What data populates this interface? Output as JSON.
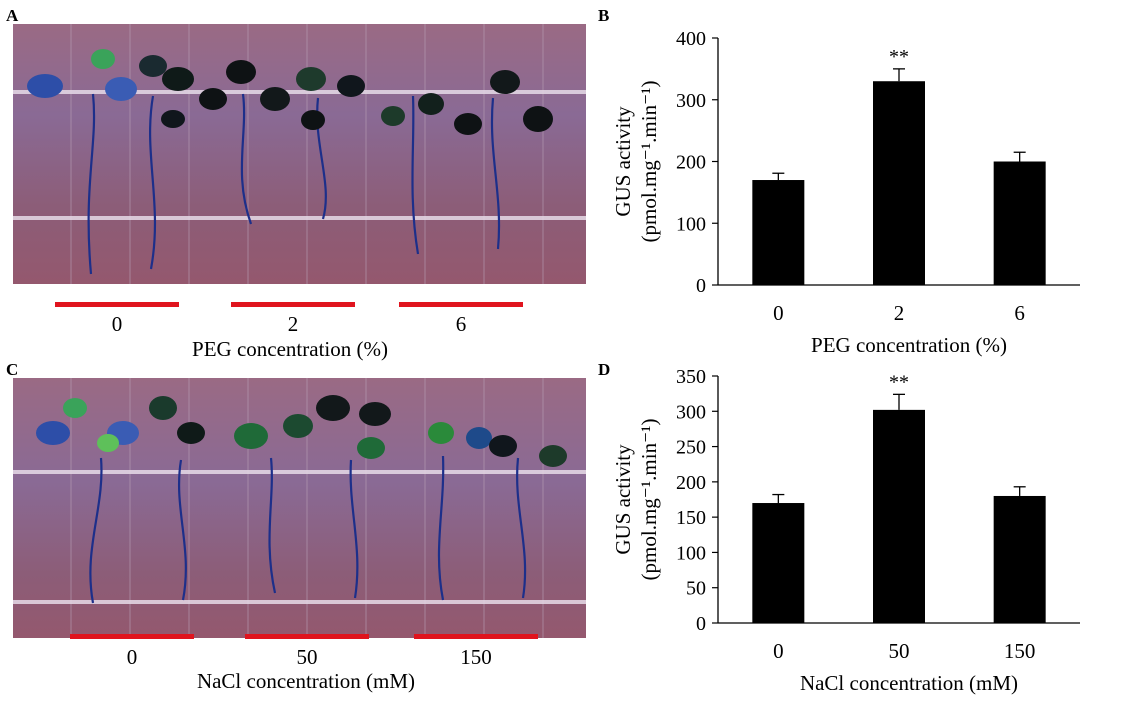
{
  "panels": {
    "A": {
      "letter": "A",
      "conditions": [
        "0",
        "2",
        "6"
      ],
      "xlabel": "PEG concentration (%)"
    },
    "C": {
      "letter": "C",
      "conditions": [
        "0",
        "50",
        "150"
      ],
      "xlabel": "NaCl concentration (mM)"
    },
    "B": {
      "letter": "B"
    },
    "D": {
      "letter": "D"
    }
  },
  "chart_data": [
    {
      "panel": "B",
      "type": "bar",
      "categories": [
        "0",
        "2",
        "6"
      ],
      "values": [
        170,
        330,
        200
      ],
      "errors": [
        11,
        20,
        15
      ],
      "significance": [
        "",
        "**",
        ""
      ],
      "xlabel": "PEG concentration (%)",
      "ylabel_line1": "GUS activity",
      "ylabel_line2": "(pmol.mg⁻¹.min⁻¹)",
      "ylim": [
        0,
        400
      ],
      "yticks": [
        0,
        100,
        200,
        300,
        400
      ],
      "bar_color": "#000000",
      "grid": false
    },
    {
      "panel": "D",
      "type": "bar",
      "categories": [
        "0",
        "50",
        "150"
      ],
      "values": [
        170,
        302,
        180
      ],
      "errors": [
        12,
        22,
        13
      ],
      "significance": [
        "",
        "**",
        ""
      ],
      "xlabel": "NaCl concentration (mM)",
      "ylabel_line1": "GUS activity",
      "ylabel_line2": "(pmol.mg⁻¹.min⁻¹)",
      "ylim": [
        0,
        350
      ],
      "yticks": [
        0,
        50,
        100,
        150,
        200,
        250,
        300,
        350
      ],
      "bar_color": "#000000",
      "grid": false
    }
  ],
  "colors": {
    "photo_background": "#8e5f78",
    "red_marker": "#e0141e",
    "stain_blue": "#1d2f8a",
    "leaf_green": "#2a8a3a"
  }
}
